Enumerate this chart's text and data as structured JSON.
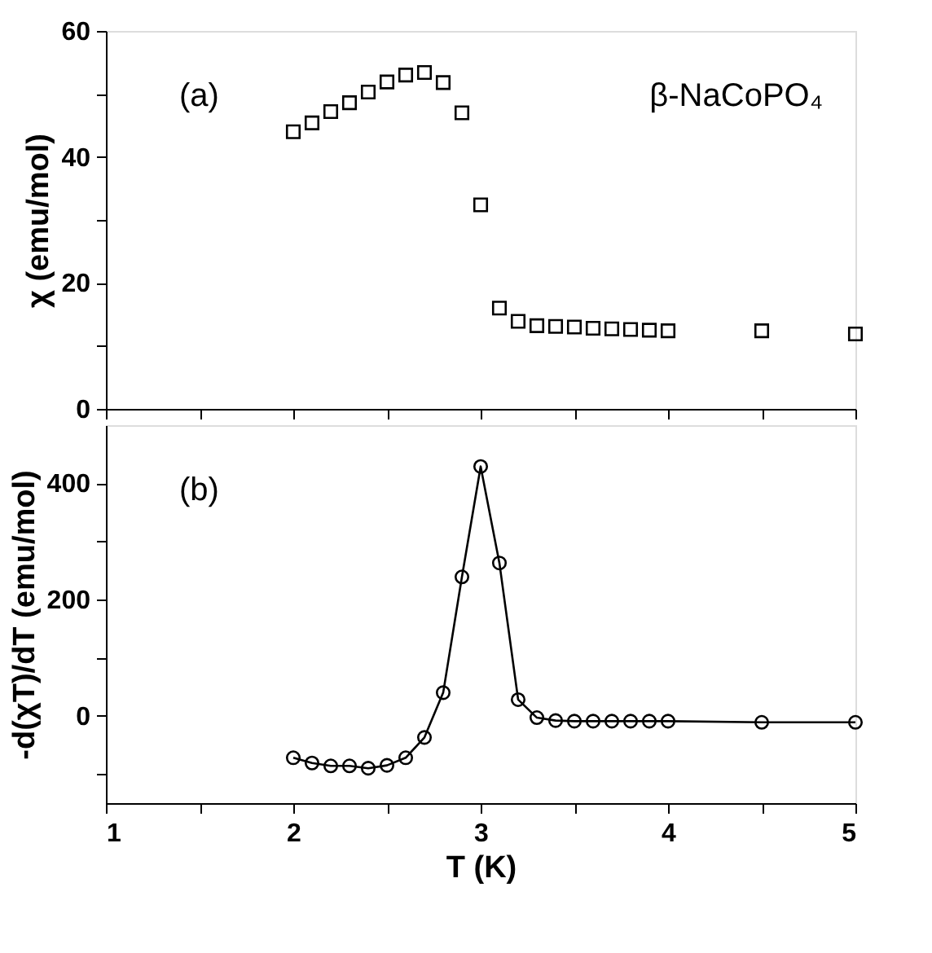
{
  "chart_data": [
    {
      "type": "scatter",
      "ylabel": "χ (emu/mol)",
      "annotations": [
        "(a)",
        "β-NaCoPO₄"
      ],
      "marker": "square",
      "grid": false,
      "tick_labels": "y",
      "x": [
        2.0,
        2.1,
        2.2,
        2.3,
        2.4,
        2.5,
        2.6,
        2.7,
        2.8,
        2.9,
        3.0,
        3.1,
        3.2,
        3.3,
        3.4,
        3.5,
        3.6,
        3.7,
        3.8,
        3.9,
        4.0,
        4.5,
        5.0
      ],
      "series": [
        {
          "color": "#000000",
          "values": [
            44.0,
            45.4,
            47.2,
            48.6,
            50.3,
            51.9,
            53.0,
            53.4,
            51.8,
            47.0,
            32.4,
            16.0,
            13.9,
            13.2,
            13.1,
            13.0,
            12.8,
            12.7,
            12.6,
            12.5,
            12.4,
            12.4,
            11.9
          ]
        }
      ],
      "xlim": [
        1,
        5
      ],
      "xticks": [
        1,
        {
          "value": 1.5,
          "label": null
        },
        2,
        {
          "value": 2.5,
          "label": null
        },
        3,
        {
          "value": 3.5,
          "label": null
        },
        4,
        {
          "value": 4.5,
          "label": null
        },
        5
      ],
      "ylim": [
        0,
        60
      ],
      "yticks": [
        0,
        {
          "value": 10,
          "label": null
        },
        20,
        {
          "value": 30,
          "label": null
        },
        40,
        {
          "value": 50,
          "label": null
        },
        60
      ]
    },
    {
      "type": "line",
      "xlabel": "T (K)",
      "ylabel": "-d(χT)/dT (emu/mol)",
      "annotations": [
        "(b)"
      ],
      "marker": "circle",
      "line_style": "solid",
      "grid": false,
      "x": [
        2.0,
        2.1,
        2.2,
        2.3,
        2.4,
        2.5,
        2.6,
        2.7,
        2.8,
        2.9,
        3.0,
        3.1,
        3.2,
        3.3,
        3.4,
        3.5,
        3.6,
        3.7,
        3.8,
        3.9,
        4.0,
        4.5,
        5.0
      ],
      "series": [
        {
          "color": "#000000",
          "values": [
            -72,
            -81,
            -86,
            -86,
            -90,
            -85,
            -72,
            -37,
            40,
            239,
            429,
            263,
            28,
            -3,
            -8,
            -9,
            -9,
            -9,
            -9,
            -9,
            -9,
            -11,
            -11
          ]
        }
      ],
      "xlim": [
        1,
        5
      ],
      "xticks": [
        1,
        {
          "value": 1.5,
          "label": null
        },
        2,
        {
          "value": 2.5,
          "label": null
        },
        3,
        {
          "value": 3.5,
          "label": null
        },
        4,
        {
          "value": 4.5,
          "label": null
        },
        5
      ],
      "ylim": [
        -150,
        500
      ],
      "yticks": [
        {
          "value": -100,
          "label": null
        },
        0,
        {
          "value": 100,
          "label": null
        },
        200,
        {
          "value": 300,
          "label": null
        },
        400
      ]
    }
  ]
}
